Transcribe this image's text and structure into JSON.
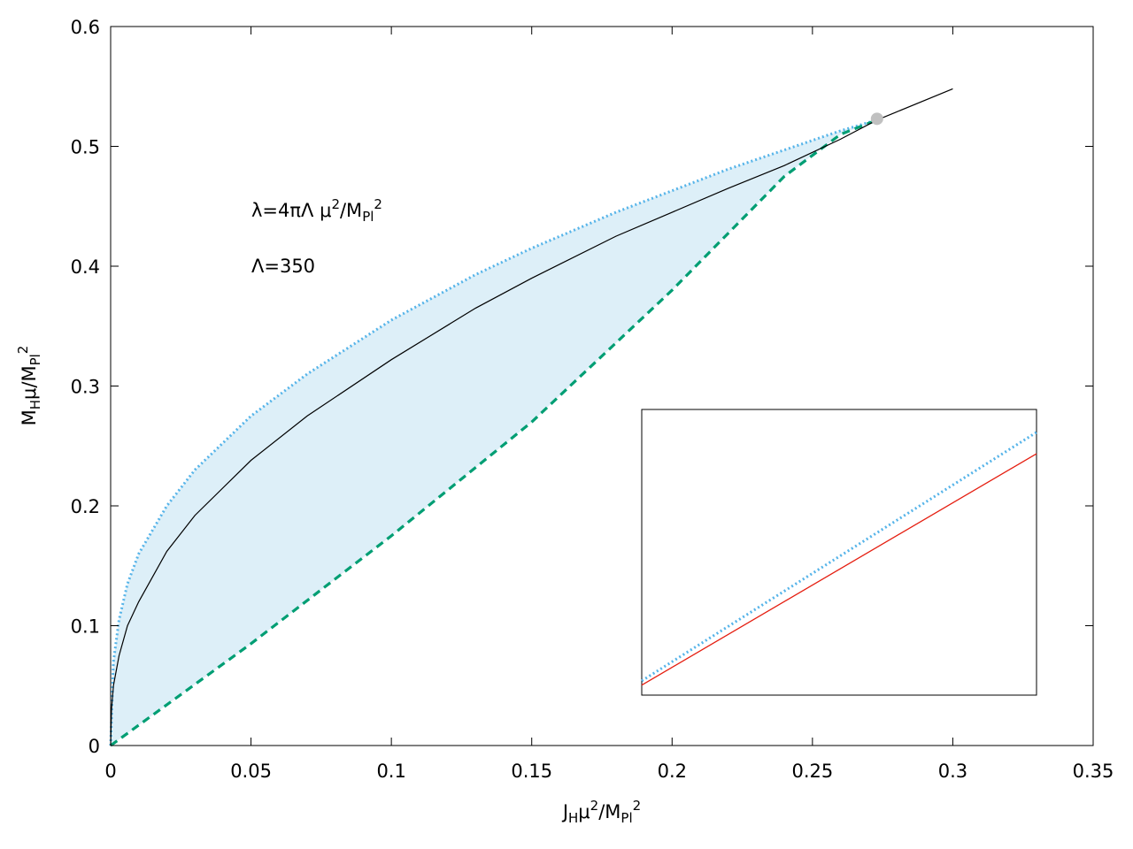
{
  "chart_data": {
    "type": "line",
    "title": "",
    "xlabel": {
      "base": "J",
      "sub1": "H",
      "rest": "μ",
      "sup1": "2",
      "slash": "/M",
      "sub2": "Pl",
      "sup2": "2"
    },
    "ylabel": {
      "base": "M",
      "sub1": "H",
      "rest": "μ/M",
      "sub2": "Pl",
      "sup2": "2"
    },
    "xlim": [
      0,
      0.35
    ],
    "ylim": [
      0,
      0.6
    ],
    "x_ticks": [
      "0",
      "0.05",
      "0.1",
      "0.15",
      "0.2",
      "0.25",
      "0.3",
      "0.35"
    ],
    "y_ticks": [
      "0",
      "0.1",
      "0.2",
      "0.3",
      "0.4",
      "0.5",
      "0.6"
    ],
    "annotations": {
      "lambda_def": {
        "pre": "λ=4πΛ μ",
        "sup1": "2",
        "mid": "/M",
        "sub": "Pl",
        "sup2": "2"
      },
      "lambda_val": "Λ=350"
    },
    "colors": {
      "fill": "#ddeff8",
      "upper_dotted": "#56b4e9",
      "lower_dashed": "#009e73",
      "solid": "#000000",
      "inset_solid": "#e51e10",
      "endpoint": "#c0c0c0"
    },
    "series": [
      {
        "style": "dotted",
        "x": [
          0,
          0.001,
          0.003,
          0.006,
          0.01,
          0.02,
          0.03,
          0.05,
          0.07,
          0.1,
          0.13,
          0.15,
          0.18,
          0.2,
          0.22,
          0.24,
          0.26,
          0.273
        ],
        "y": [
          0,
          0.07,
          0.105,
          0.135,
          0.16,
          0.2,
          0.23,
          0.275,
          0.31,
          0.355,
          0.393,
          0.415,
          0.445,
          0.463,
          0.481,
          0.497,
          0.513,
          0.522
        ]
      },
      {
        "style": "solid",
        "x": [
          0,
          0.0003,
          0.001,
          0.003,
          0.006,
          0.01,
          0.02,
          0.03,
          0.05,
          0.07,
          0.1,
          0.13,
          0.15,
          0.18,
          0.2,
          0.22,
          0.24,
          0.26,
          0.273,
          0.3
        ],
        "y": [
          0,
          0.03,
          0.05,
          0.075,
          0.1,
          0.12,
          0.162,
          0.192,
          0.238,
          0.275,
          0.322,
          0.365,
          0.39,
          0.425,
          0.445,
          0.465,
          0.484,
          0.506,
          0.522,
          0.548
        ]
      },
      {
        "style": "dashed",
        "x": [
          0,
          0.05,
          0.1,
          0.15,
          0.2,
          0.24,
          0.26,
          0.273
        ],
        "y": [
          0,
          0.085,
          0.175,
          0.27,
          0.38,
          0.475,
          0.51,
          0.522
        ]
      }
    ],
    "endpoint": {
      "x": 0.273,
      "y": 0.523
    },
    "inset": {
      "dotted": {
        "x": [
          0,
          1
        ],
        "y": [
          0.05,
          0.92
        ]
      },
      "solid": {
        "x": [
          0,
          1
        ],
        "y": [
          0.035,
          0.845
        ]
      }
    }
  }
}
